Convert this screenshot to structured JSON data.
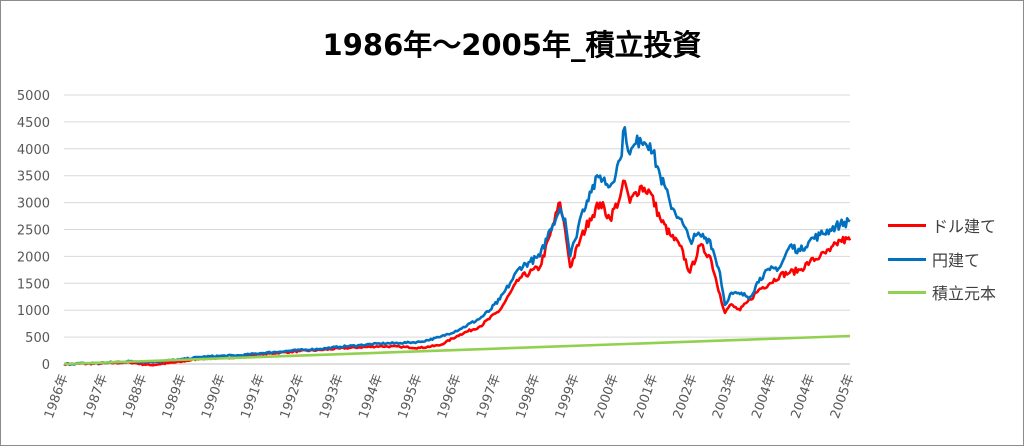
{
  "chart_data": {
    "type": "line",
    "title": "1986年～2005年_積立投資",
    "xlabel": "",
    "ylabel": "",
    "ylim": [
      0,
      5000
    ],
    "yticks": [
      "0",
      "500",
      "1000",
      "1500",
      "2000",
      "2500",
      "3000",
      "3500",
      "4000",
      "4500",
      "5000"
    ],
    "grid": true,
    "legend_position": "right",
    "x_tick_labels": [
      "1986年",
      "1987年",
      "1988年",
      "1989年",
      "1990年",
      "1991年",
      "1992年",
      "1993年",
      "1994年",
      "1995年",
      "1996年",
      "1997年",
      "1998年",
      "1999年",
      "2000年",
      "2001年",
      "2002年",
      "2003年",
      "2004年",
      "2004年",
      "2005年"
    ],
    "x_unit": "label index (0 = 1986年, 20 = 2005年)",
    "series": [
      {
        "name": "ドル建て",
        "color": "#ff0000",
        "points": [
          [
            0,
            0
          ],
          [
            0.92,
            10
          ],
          [
            1.68,
            30
          ],
          [
            2.19,
            -20
          ],
          [
            2.95,
            40
          ],
          [
            3.46,
            100
          ],
          [
            3.97,
            110
          ],
          [
            4.48,
            130
          ],
          [
            4.99,
            180
          ],
          [
            5.5,
            210
          ],
          [
            6.0,
            240
          ],
          [
            6.51,
            260
          ],
          [
            7.02,
            290
          ],
          [
            7.53,
            310
          ],
          [
            8.04,
            330
          ],
          [
            8.55,
            320
          ],
          [
            9.06,
            300
          ],
          [
            9.57,
            350
          ],
          [
            10.08,
            550
          ],
          [
            10.59,
            700
          ],
          [
            11.09,
            1000
          ],
          [
            11.6,
            1600
          ],
          [
            12.11,
            1800
          ],
          [
            12.37,
            2400
          ],
          [
            12.62,
            3000
          ],
          [
            12.75,
            2500
          ],
          [
            12.88,
            1800
          ],
          [
            13.13,
            2300
          ],
          [
            13.38,
            2700
          ],
          [
            13.64,
            3000
          ],
          [
            13.89,
            2700
          ],
          [
            14.15,
            3100
          ],
          [
            14.27,
            3400
          ],
          [
            14.4,
            3000
          ],
          [
            14.66,
            3300
          ],
          [
            14.91,
            3200
          ],
          [
            15.17,
            2700
          ],
          [
            15.42,
            2400
          ],
          [
            15.67,
            2200
          ],
          [
            15.93,
            1700
          ],
          [
            16.18,
            2200
          ],
          [
            16.44,
            2000
          ],
          [
            16.69,
            1300
          ],
          [
            16.82,
            950
          ],
          [
            16.95,
            1100
          ],
          [
            17.2,
            1000
          ],
          [
            17.46,
            1200
          ],
          [
            17.71,
            1400
          ],
          [
            17.96,
            1500
          ],
          [
            18.22,
            1650
          ],
          [
            18.47,
            1700
          ],
          [
            18.73,
            1750
          ],
          [
            18.98,
            1900
          ],
          [
            19.24,
            2000
          ],
          [
            19.49,
            2100
          ],
          [
            19.75,
            2300
          ],
          [
            20,
            2300
          ]
        ]
      },
      {
        "name": "円建て",
        "color": "#0070c0",
        "points": [
          [
            0,
            0
          ],
          [
            0.92,
            20
          ],
          [
            1.68,
            50
          ],
          [
            2.19,
            40
          ],
          [
            2.95,
            80
          ],
          [
            3.46,
            130
          ],
          [
            3.97,
            150
          ],
          [
            4.48,
            160
          ],
          [
            4.99,
            200
          ],
          [
            5.5,
            230
          ],
          [
            6.0,
            260
          ],
          [
            6.51,
            280
          ],
          [
            7.02,
            320
          ],
          [
            7.53,
            350
          ],
          [
            8.04,
            380
          ],
          [
            8.55,
            390
          ],
          [
            9.06,
            410
          ],
          [
            9.57,
            500
          ],
          [
            10.08,
            650
          ],
          [
            10.59,
            850
          ],
          [
            10.84,
            1000
          ],
          [
            11.09,
            1200
          ],
          [
            11.35,
            1500
          ],
          [
            11.6,
            1800
          ],
          [
            11.86,
            1900
          ],
          [
            12.11,
            2000
          ],
          [
            12.37,
            2500
          ],
          [
            12.62,
            2900
          ],
          [
            12.75,
            2700
          ],
          [
            12.88,
            2000
          ],
          [
            13.0,
            2300
          ],
          [
            13.13,
            2700
          ],
          [
            13.38,
            3200
          ],
          [
            13.64,
            3500
          ],
          [
            13.89,
            3300
          ],
          [
            14.15,
            3800
          ],
          [
            14.27,
            4400
          ],
          [
            14.4,
            3900
          ],
          [
            14.66,
            4200
          ],
          [
            14.91,
            4100
          ],
          [
            15.17,
            3500
          ],
          [
            15.42,
            3000
          ],
          [
            15.67,
            2700
          ],
          [
            15.93,
            2300
          ],
          [
            16.18,
            2400
          ],
          [
            16.44,
            2300
          ],
          [
            16.69,
            1700
          ],
          [
            16.82,
            1100
          ],
          [
            16.95,
            1300
          ],
          [
            17.2,
            1300
          ],
          [
            17.46,
            1250
          ],
          [
            17.71,
            1600
          ],
          [
            17.96,
            1750
          ],
          [
            18.22,
            1800
          ],
          [
            18.47,
            2200
          ],
          [
            18.73,
            2100
          ],
          [
            18.98,
            2300
          ],
          [
            19.24,
            2400
          ],
          [
            19.49,
            2500
          ],
          [
            19.75,
            2600
          ],
          [
            20,
            2650
          ]
        ]
      },
      {
        "name": "積立元本",
        "color": "#92d050",
        "points": [
          [
            0,
            0
          ],
          [
            20,
            520
          ]
        ]
      }
    ]
  }
}
